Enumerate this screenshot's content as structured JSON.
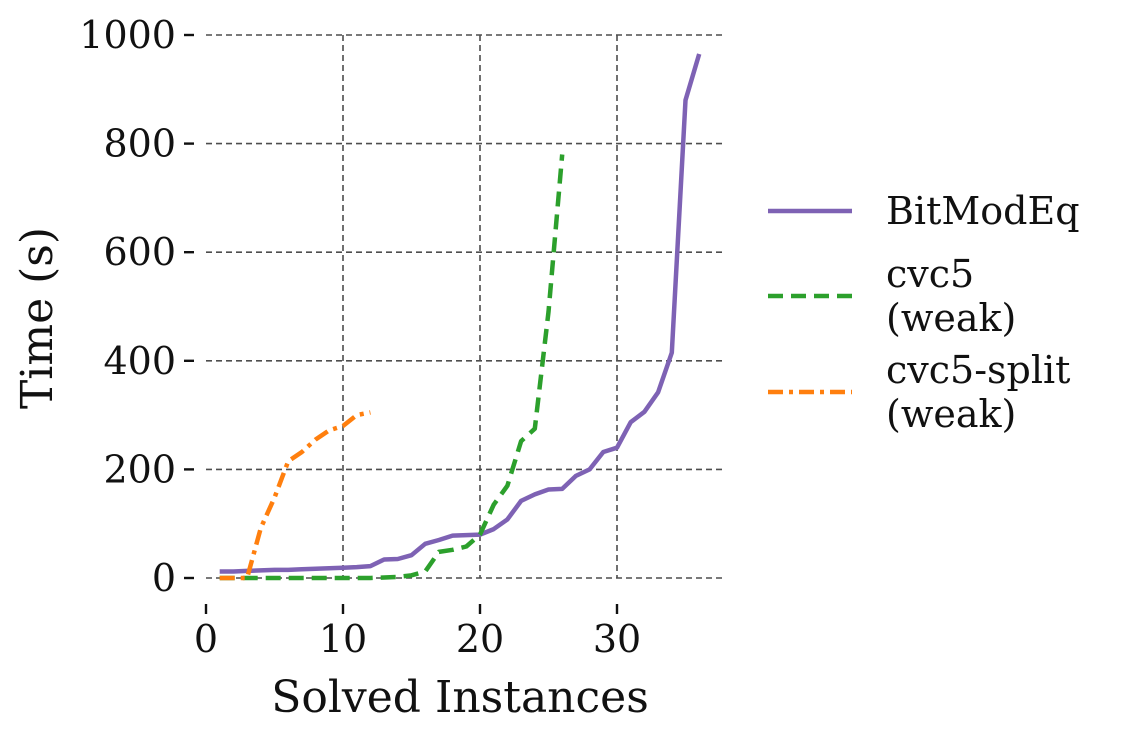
{
  "chart_data": {
    "type": "line",
    "xlabel": "Solved Instances",
    "ylabel": "Time (s)",
    "xlim": [
      0,
      38
    ],
    "ylim": [
      -50,
      1000
    ],
    "xticks": [
      0,
      10,
      20,
      30
    ],
    "yticks": [
      0,
      200,
      400,
      600,
      800,
      1000
    ],
    "grid": true,
    "legend_position": "right",
    "series": [
      {
        "name": "BitModEq",
        "color": "#7e62b4",
        "dash": "solid",
        "x": [
          1,
          2,
          3,
          4,
          5,
          6,
          7,
          8,
          9,
          10,
          11,
          12,
          13,
          14,
          15,
          16,
          17,
          18,
          19,
          20,
          21,
          22,
          23,
          24,
          25,
          26,
          27,
          28,
          29,
          30,
          31,
          32,
          33,
          34,
          35,
          36
        ],
        "y": [
          12,
          12,
          13,
          14,
          15,
          15,
          16,
          17,
          18,
          19,
          20,
          22,
          34,
          35,
          42,
          63,
          70,
          78,
          79,
          80,
          90,
          108,
          142,
          154,
          163,
          164,
          188,
          200,
          232,
          240,
          287,
          306,
          342,
          415,
          880,
          965
        ]
      },
      {
        "name": "cvc5\n(weak)",
        "color": "#2ca02c",
        "dash": "dashed",
        "x": [
          1,
          2,
          3,
          4,
          5,
          6,
          7,
          8,
          9,
          10,
          11,
          12,
          13,
          14,
          15,
          16,
          17,
          18,
          19,
          20,
          21,
          22,
          23,
          24,
          25,
          26
        ],
        "y": [
          0,
          0,
          0,
          0,
          0,
          0,
          0,
          0,
          0,
          0,
          0,
          0,
          1,
          2,
          5,
          12,
          48,
          52,
          58,
          80,
          135,
          170,
          252,
          275,
          490,
          780
        ]
      },
      {
        "name": "cvc5-split\n(weak)",
        "color": "#ff7f0e",
        "dash": "dashdot",
        "x": [
          1,
          2,
          3,
          4,
          5,
          6,
          7,
          8,
          9,
          10,
          11,
          12
        ],
        "y": [
          0,
          0,
          0,
          92,
          148,
          215,
          232,
          255,
          272,
          280,
          300,
          305
        ]
      }
    ]
  }
}
